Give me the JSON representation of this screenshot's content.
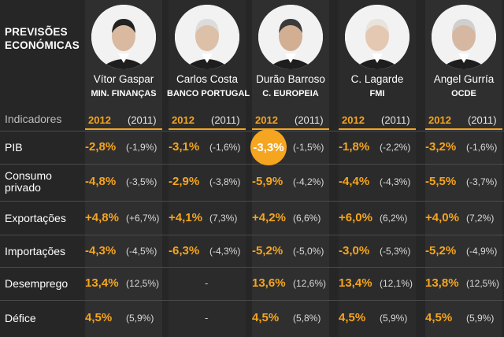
{
  "heading": "PREVISÕES ECONÓMICAS",
  "indicators_label": "Indicadores",
  "year_current": "2012",
  "year_previous": "(2011)",
  "colors": {
    "accent": "#f5a51f",
    "background": "#262626",
    "column_shade": "#363636"
  },
  "chart_data": {
    "type": "table",
    "columns": [
      {
        "name": "Vítor Gaspar",
        "org": "MIN. FINANÇAS"
      },
      {
        "name": "Carlos Costa",
        "org": "BANCO PORTUGAL"
      },
      {
        "name": "Durão Barroso",
        "org": "C. EUROPEIA"
      },
      {
        "name": "C. Lagarde",
        "org": "FMI"
      },
      {
        "name": "Angel Gurría",
        "org": "OCDE"
      }
    ],
    "rows": [
      {
        "label": "PIB",
        "values": [
          {
            "cur": "-2,8%",
            "prev": "(-1,9%)"
          },
          {
            "cur": "-3,1%",
            "prev": "(-1,6%)"
          },
          {
            "cur": "-3,3%",
            "prev": "(-1,5%)",
            "highlight": true
          },
          {
            "cur": "-1,8%",
            "prev": "(-2,2%)"
          },
          {
            "cur": "-3,2%",
            "prev": "(-1,6%)"
          }
        ]
      },
      {
        "label": "Consumo privado",
        "values": [
          {
            "cur": "-4,8%",
            "prev": "(-3,5%)"
          },
          {
            "cur": "-2,9%",
            "prev": "(-3,8%)"
          },
          {
            "cur": "-5,9%",
            "prev": "(-4,2%)"
          },
          {
            "cur": "-4,4%",
            "prev": "(-4,3%)"
          },
          {
            "cur": "-5,5%",
            "prev": "(-3,7%)"
          }
        ]
      },
      {
        "label": "Exportações",
        "values": [
          {
            "cur": "+4,8%",
            "prev": "(+6,7%)"
          },
          {
            "cur": "+4,1%",
            "prev": "(7,3%)"
          },
          {
            "cur": "+4,2%",
            "prev": "(6,6%)"
          },
          {
            "cur": "+6,0%",
            "prev": "(6,2%)"
          },
          {
            "cur": "+4,0%",
            "prev": "(7,2%)"
          }
        ]
      },
      {
        "label": "Importações",
        "values": [
          {
            "cur": "-4,3%",
            "prev": "(-4,5%)"
          },
          {
            "cur": "-6,3%",
            "prev": "(-4,3%)"
          },
          {
            "cur": "-5,2%",
            "prev": "(-5,0%)"
          },
          {
            "cur": "-3,0%",
            "prev": "(-5,3%)"
          },
          {
            "cur": "-5,2%",
            "prev": "(-4,9%)"
          }
        ]
      },
      {
        "label": "Desemprego",
        "values": [
          {
            "cur": "13,4%",
            "prev": "(12,5%)"
          },
          {
            "dash": "-"
          },
          {
            "cur": "13,6%",
            "prev": "(12,6%)"
          },
          {
            "cur": "13,4%",
            "prev": "(12,1%)"
          },
          {
            "cur": "13,8%",
            "prev": "(12,5%)"
          }
        ]
      },
      {
        "label": "Défice",
        "values": [
          {
            "cur": "4,5%",
            "prev": "(5,9%)"
          },
          {
            "dash": "-"
          },
          {
            "cur": "4,5%",
            "prev": "(5,8%)"
          },
          {
            "cur": "4,5%",
            "prev": "(5,9%)"
          },
          {
            "cur": "4,5%",
            "prev": "(5,9%)"
          }
        ]
      }
    ]
  }
}
